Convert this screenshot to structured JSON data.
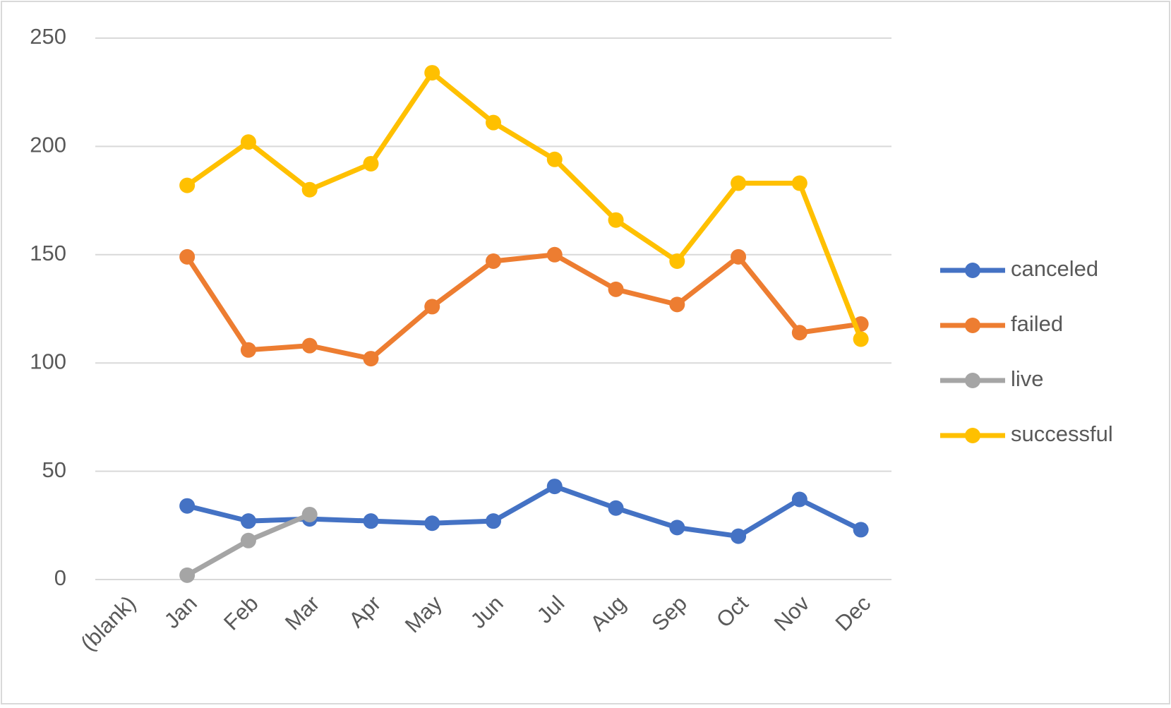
{
  "chart_data": {
    "type": "line",
    "categories": [
      "(blank)",
      "Jan",
      "Feb",
      "Mar",
      "Apr",
      "May",
      "Jun",
      "Jul",
      "Aug",
      "Sep",
      "Oct",
      "Nov",
      "Dec"
    ],
    "series": [
      {
        "name": "canceled",
        "color": "#4472c4",
        "values": [
          null,
          34,
          27,
          28,
          27,
          26,
          27,
          43,
          33,
          24,
          20,
          37,
          23
        ]
      },
      {
        "name": "failed",
        "color": "#ed7d31",
        "values": [
          null,
          149,
          106,
          108,
          102,
          126,
          147,
          150,
          134,
          127,
          149,
          114,
          118
        ]
      },
      {
        "name": "live",
        "color": "#a5a5a5",
        "values": [
          null,
          2,
          18,
          30,
          null,
          null,
          null,
          null,
          null,
          null,
          null,
          null,
          null
        ]
      },
      {
        "name": "successful",
        "color": "#ffc000",
        "values": [
          null,
          182,
          202,
          180,
          192,
          234,
          211,
          194,
          166,
          147,
          183,
          183,
          111
        ]
      }
    ],
    "ylim": [
      0,
      250
    ],
    "yticks": [
      0,
      50,
      100,
      150,
      200,
      250
    ],
    "grid": true,
    "legend": "right"
  }
}
